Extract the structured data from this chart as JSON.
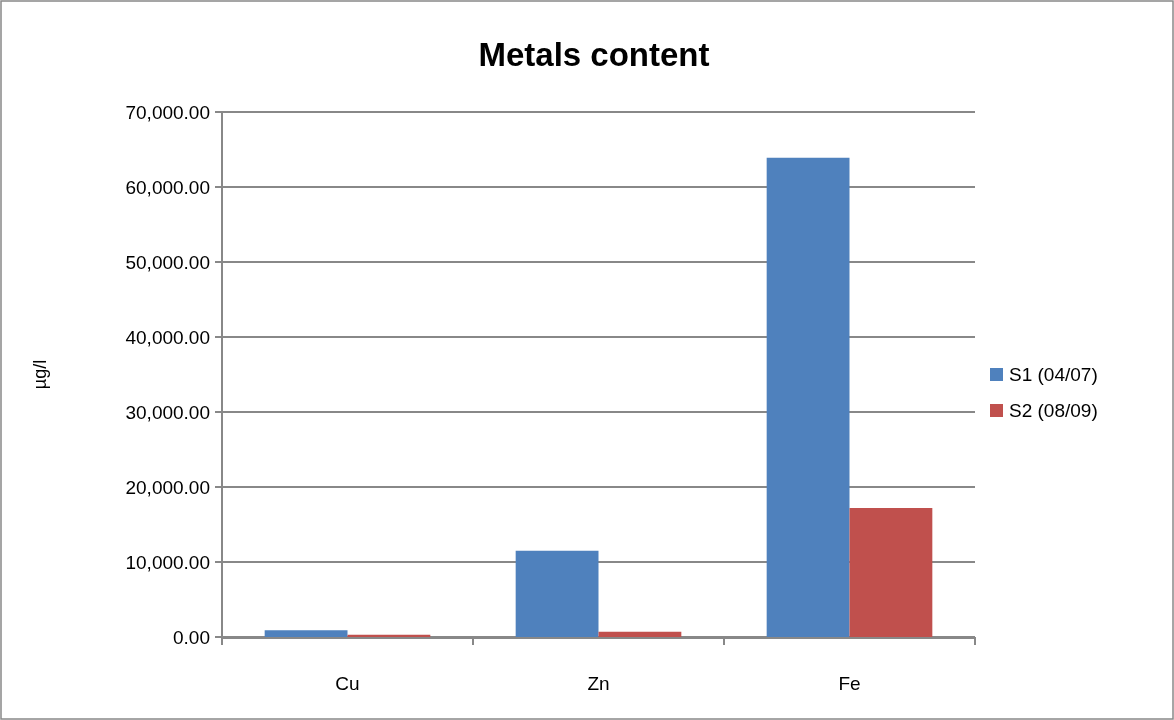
{
  "chart_data": {
    "type": "bar",
    "title": "Metals content",
    "ylabel": "µg/l",
    "categories": [
      "Cu",
      "Zn",
      "Fe"
    ],
    "series": [
      {
        "name": "S1 (04/07)",
        "color": "#4f81bd",
        "values": [
          900,
          11500,
          63900
        ]
      },
      {
        "name": "S2 (08/09)",
        "color": "#c0504d",
        "values": [
          300,
          700,
          17200
        ]
      }
    ],
    "ylim": [
      0,
      70000
    ],
    "yticks": [
      {
        "value": 0,
        "label": "0.00"
      },
      {
        "value": 10000,
        "label": "10,000.00"
      },
      {
        "value": 20000,
        "label": "20,000.00"
      },
      {
        "value": 30000,
        "label": "30,000.00"
      },
      {
        "value": 40000,
        "label": "40,000.00"
      },
      {
        "value": 50000,
        "label": "50,000.00"
      },
      {
        "value": 60000,
        "label": "60,000.00"
      },
      {
        "value": 70000,
        "label": "70,000.00"
      }
    ],
    "grid": "y",
    "legend": "right"
  }
}
